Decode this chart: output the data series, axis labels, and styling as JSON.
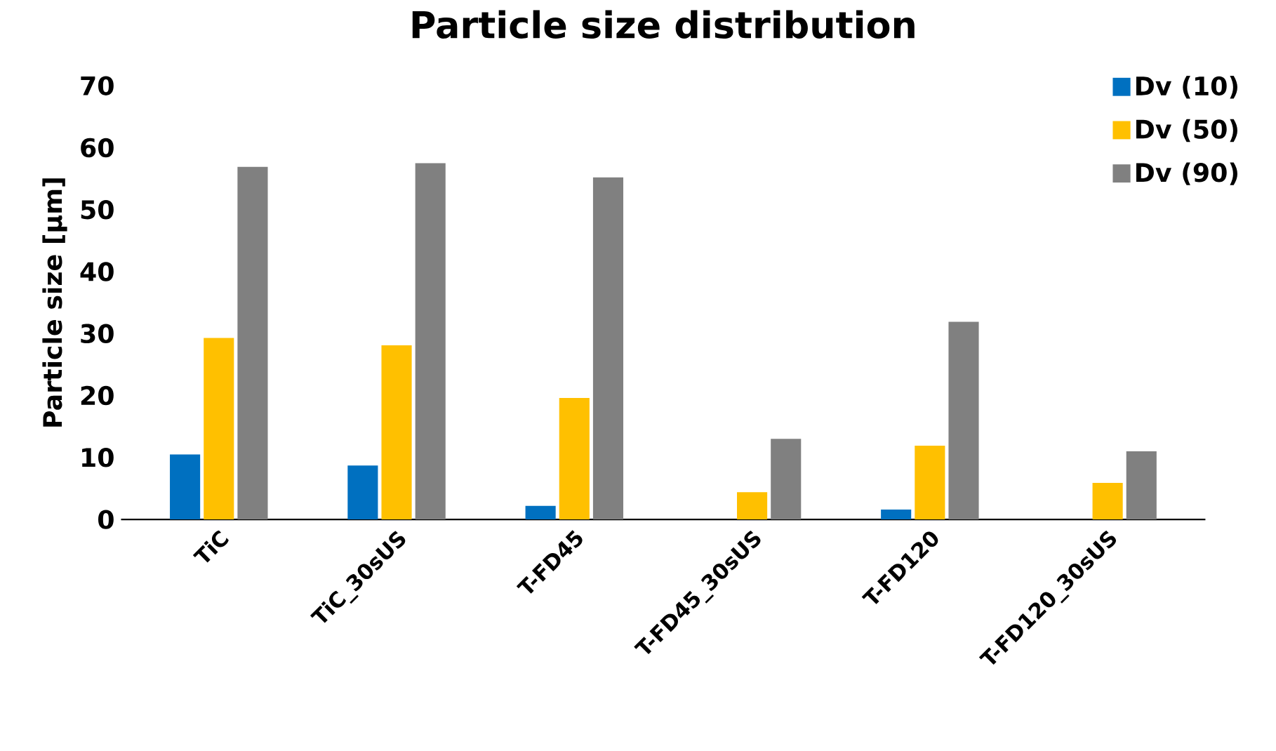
{
  "chart_data": {
    "type": "bar",
    "title": "Particle size distribution",
    "ylabel": "Particle size [µm]",
    "categories": [
      "TiC",
      "TiC_30sUS",
      "T-FD45",
      "T-FD45_30sUS",
      "T-FD120",
      "T-FD120_30sUS"
    ],
    "series": [
      {
        "name": "Dv (10)",
        "color": "#0070c0",
        "values": [
          10.5,
          8.7,
          2.2,
          null,
          1.6,
          null
        ]
      },
      {
        "name": "Dv (50)",
        "color": "#ffc000",
        "values": [
          29.3,
          28.1,
          19.6,
          4.4,
          11.9,
          5.9
        ]
      },
      {
        "name": "Dv (90)",
        "color": "#808080",
        "values": [
          56.9,
          57.5,
          55.2,
          13.0,
          31.9,
          11.0
        ]
      }
    ],
    "ylim": [
      0,
      70
    ],
    "yticks": [
      0,
      10,
      20,
      30,
      40,
      50,
      60,
      70
    ],
    "grid": false,
    "legend": "top right"
  }
}
